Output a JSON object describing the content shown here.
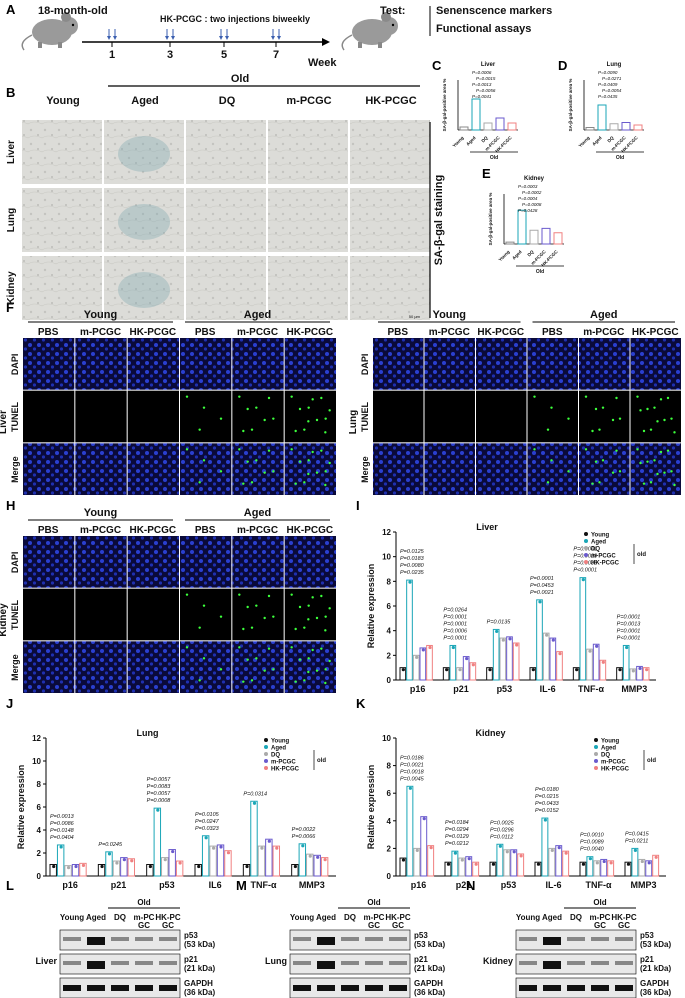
{
  "panels": [
    "A",
    "B",
    "C",
    "D",
    "E",
    "F",
    "G",
    "H",
    "I",
    "J",
    "K",
    "L",
    "M",
    "N"
  ],
  "panelA": {
    "age": "18-month-old",
    "regimen": "HK-PCGC : two injections biweekly",
    "weeks": [
      "1",
      "3",
      "5",
      "7"
    ],
    "axis_label": "Week",
    "test_label": "Test:",
    "tests": [
      "Senenscence markers",
      "Functional assays"
    ]
  },
  "panelB": {
    "group_old": "Old",
    "columns": [
      "Young",
      "Aged",
      "DQ",
      "m-PCGC",
      "HK-PCGC"
    ],
    "rows": [
      "Liver",
      "Lung",
      "Kidney"
    ],
    "side_label": "SA-β-gal staining",
    "scale": "50 μm"
  },
  "sagal": {
    "ylabel": "SA-β-gal-positive area %",
    "cats": [
      "Young",
      "Aged",
      "DQ",
      "m-PCGC",
      "HK-PCGC"
    ],
    "old_label": "Old",
    "charts": [
      {
        "title": "Liver",
        "values": [
          0.15,
          1.55,
          0.35,
          0.6,
          0.35
        ],
        "ymax": 2.5,
        "pvals": [
          "P=0.0006",
          "P=0.0015",
          "P=0.0013",
          "P=0.0056",
          "P=0.0041"
        ]
      },
      {
        "title": "Lung",
        "values": [
          0.1,
          1.0,
          0.25,
          0.3,
          0.2
        ],
        "ymax": 2.0,
        "pvals": [
          "P=0.0090",
          "P=0.0271",
          "P=0.0409",
          "P=0.0054",
          "P=0.0435"
        ]
      },
      {
        "title": "Kidney",
        "values": [
          0.15,
          2.7,
          1.1,
          1.25,
          0.9
        ],
        "ymax": 4,
        "pvals": [
          "P=0.0003",
          "P=0.0002",
          "P=0.0004",
          "P=0.0008",
          "P=0.0428"
        ]
      }
    ]
  },
  "tunel": {
    "groups": [
      "Young",
      "Aged"
    ],
    "cols": [
      "PBS",
      "m-PCGC",
      "HK-PCGC",
      "PBS",
      "m-PCGC",
      "HK-PCGC"
    ],
    "rows": [
      "DAPI",
      "TUNEL",
      "Merge"
    ],
    "organs": [
      "Liver",
      "Lung",
      "Kidney"
    ]
  },
  "expr": {
    "ylabel": "Relative expression",
    "legend": [
      "Young",
      "Aged",
      "DQ",
      "m-PCGC",
      "HK-PCGC"
    ],
    "old": "old",
    "colors": [
      "#111111",
      "#1aa6b7",
      "#aaaaaa",
      "#6a5acd",
      "#f08080"
    ],
    "charts": [
      {
        "title": "Liver",
        "genes": [
          "p16",
          "p21",
          "p53",
          "IL-6",
          "TNF-α",
          "MMP3"
        ],
        "ymax": 12,
        "yticks": [
          0,
          2,
          4,
          6,
          8,
          10,
          12
        ],
        "values": [
          [
            1,
            8.1,
            2.0,
            2.6,
            2.8
          ],
          [
            1,
            2.8,
            1.0,
            1.9,
            1.4
          ],
          [
            1,
            4.1,
            3.4,
            3.5,
            3.0
          ],
          [
            1,
            6.5,
            3.8,
            3.4,
            2.3
          ],
          [
            1,
            8.3,
            2.5,
            2.9,
            1.6
          ],
          [
            1,
            2.8,
            0.9,
            1.1,
            1.0
          ]
        ],
        "pvals": [
          [
            "P=0.0235",
            "P=0.0080",
            "P=0.0183",
            "P=0.0125"
          ],
          [
            "P=0.0001",
            "P=0.0006",
            "P=0.0001",
            "P=0.0001",
            "P=0.0264"
          ],
          [
            "P=0.0135"
          ],
          [
            "P=0.0021",
            "P=0.0453",
            "P=0.0001"
          ],
          [
            "P<0.0001",
            "P=0.0035",
            "P=0.0028",
            "P=0.0001"
          ],
          [
            "P<0.0001",
            "P=0.0001",
            "P=0.0013",
            "P=0.0001"
          ]
        ]
      },
      {
        "title": "Lung",
        "genes": [
          "p16",
          "p21",
          "p53",
          "IL6",
          "TNF-α",
          "MMP3"
        ],
        "ymax": 12,
        "yticks": [
          0,
          2,
          4,
          6,
          8,
          10,
          12
        ],
        "values": [
          [
            1,
            2.7,
            0.9,
            1.0,
            1.1
          ],
          [
            1,
            2.1,
            1.3,
            1.6,
            1.5
          ],
          [
            1,
            5.9,
            1.6,
            2.3,
            1.3
          ],
          [
            1,
            3.5,
            2.6,
            2.7,
            2.2
          ],
          [
            1,
            6.5,
            2.6,
            3.2,
            2.6
          ],
          [
            1,
            2.8,
            1.9,
            1.8,
            1.6
          ]
        ],
        "pvals": [
          [
            "P=0.0404",
            "P=0.0148",
            "P=0.0086",
            "P=0.0013"
          ],
          [
            "P=0.0245"
          ],
          [
            "P=0.0008",
            "P=0.0057",
            "P=0.0083",
            "P=0.0057"
          ],
          [
            "P=0.0323",
            "P=0.0247",
            "P=0.0105"
          ],
          [
            "P=0.0314"
          ],
          [
            "P=0.0066",
            "P=0.0022"
          ]
        ]
      },
      {
        "title": "Kidney",
        "genes": [
          "p16",
          "p21",
          "p53",
          "IL-6",
          "TNF-α",
          "MMP3"
        ],
        "ymax": 10,
        "yticks": [
          0,
          2,
          4,
          6,
          8,
          10
        ],
        "values": [
          [
            1.3,
            6.5,
            2.0,
            4.3,
            2.2
          ],
          [
            1,
            1.8,
            1.3,
            1.4,
            1.0
          ],
          [
            1,
            2.3,
            1.9,
            1.9,
            1.6
          ],
          [
            1,
            4.2,
            2.0,
            2.2,
            1.8
          ],
          [
            1,
            1.4,
            1.1,
            1.2,
            1.1
          ],
          [
            1,
            2.0,
            1.2,
            1.1,
            1.5
          ]
        ],
        "pvals": [
          [
            "P=0.0045",
            "P=0.0018",
            "P=0.0021",
            "P=0.0186"
          ],
          [
            "P=0.0212",
            "P=0.0129",
            "P=0.0294",
            "P=0.0184"
          ],
          [
            "P=0.0112",
            "P=0.0296",
            "P=0.0025"
          ],
          [
            "P=0.0152",
            "P=0.0433",
            "P=0.0215",
            "P=0.0180"
          ],
          [
            "P=0.0040",
            "P=0.0089",
            "P=0.0010"
          ],
          [
            "P=0.0211",
            "P=0.0415"
          ]
        ]
      }
    ]
  },
  "wb": {
    "lanes": [
      "Young",
      "Aged",
      "DQ",
      "m-PC GC",
      "HK-PC GC"
    ],
    "old": "Old",
    "bands": [
      "p53 (53 kDa)",
      "p21 (21 kDa)",
      "GAPDH (36 kDa)"
    ],
    "organs": [
      "Liver",
      "Lung",
      "Kidney"
    ]
  }
}
